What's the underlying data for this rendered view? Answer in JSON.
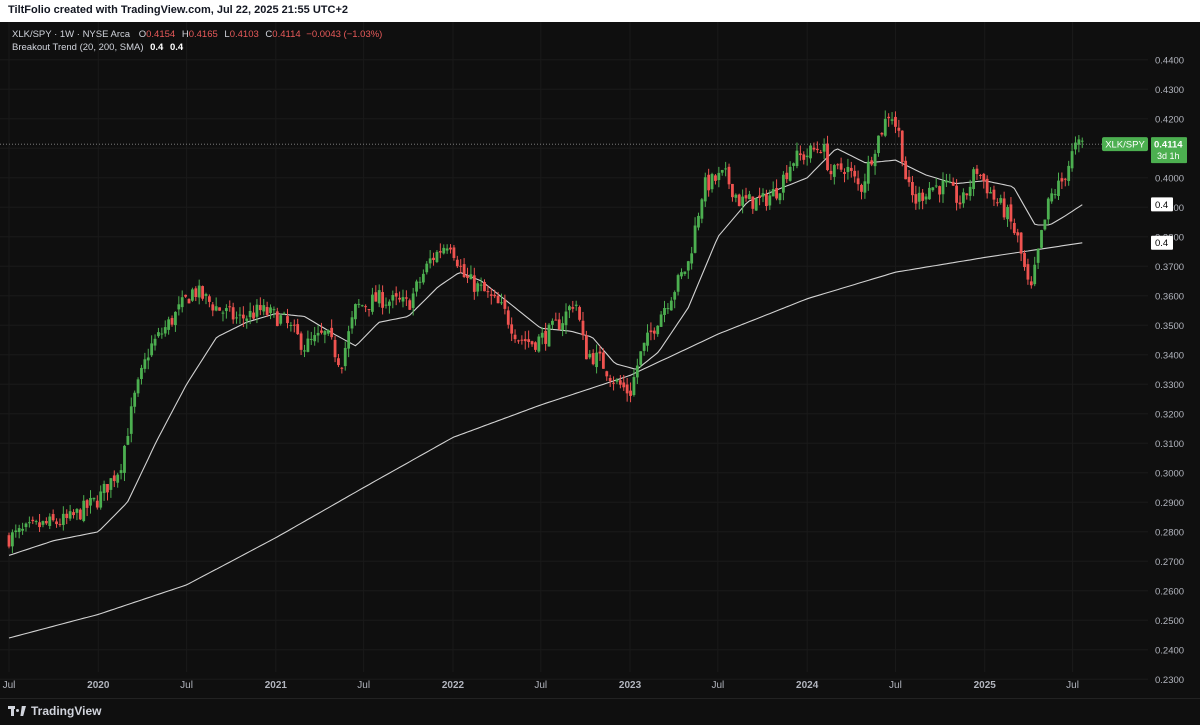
{
  "header": {
    "credit": "TiltFolio created with TradingView.com, Jul 22, 2025 21:55 UTC+2"
  },
  "legend": {
    "symbol": "XLK/SPY · 1W · NYSE Arca",
    "o_label": "O",
    "o_value": "0.4154",
    "h_label": "H",
    "h_value": "0.4165",
    "l_label": "L",
    "l_value": "0.4103",
    "c_label": "C",
    "c_value": "0.4114",
    "change": "−0.0043 (−1.03%)",
    "indicator_name": "Breakout Trend (20, 200, SMA)",
    "indicator_v1": "0.4",
    "indicator_v2": "0.4"
  },
  "price_tag": {
    "symbol": "XLK/SPY",
    "value": "0.4114",
    "countdown": "3d 1h"
  },
  "ma_tags": {
    "fast": "0.4",
    "slow": "0.4"
  },
  "footer": {
    "brand": "TradingView"
  },
  "colors": {
    "up": "#4caf50",
    "down": "#ef5350",
    "background": "#0f0f0f",
    "ma_fast": "#e8e8e8",
    "ma_slow": "#e8e8e8",
    "grid": "#1a1a1a",
    "text": "#b2b5be"
  },
  "chart_data": {
    "type": "candlestick",
    "title": "XLK/SPY · 1W · NYSE Arca",
    "interval": "1W",
    "y_ticks": [
      "0.4400",
      "0.4300",
      "0.4200",
      "0.4100",
      "0.4000",
      "0.3900",
      "0.3800",
      "0.3700",
      "0.3600",
      "0.3500",
      "0.3400",
      "0.3300",
      "0.3200",
      "0.3100",
      "0.3000",
      "0.2900",
      "0.2800",
      "0.2700",
      "0.2600",
      "0.2500",
      "0.2400",
      "0.2300"
    ],
    "ylim": [
      0.2265,
      0.444
    ],
    "x_ticks": [
      {
        "label": "Jul",
        "date": "2019-07-01"
      },
      {
        "label": "2020",
        "date": "2020-01-01"
      },
      {
        "label": "Jul",
        "date": "2020-07-01"
      },
      {
        "label": "2021",
        "date": "2021-01-01"
      },
      {
        "label": "Jul",
        "date": "2021-07-01"
      },
      {
        "label": "2022",
        "date": "2022-01-01"
      },
      {
        "label": "Jul",
        "date": "2022-07-01"
      },
      {
        "label": "2023",
        "date": "2023-01-01"
      },
      {
        "label": "Jul",
        "date": "2023-07-01"
      },
      {
        "label": "2024",
        "date": "2024-01-01"
      },
      {
        "label": "Jul",
        "date": "2024-07-01"
      },
      {
        "label": "2025",
        "date": "2025-01-01"
      },
      {
        "label": "Jul",
        "date": "2025-07-01"
      }
    ],
    "last_close": 0.4114,
    "close_anchors": [
      [
        "2019-07-01",
        0.278
      ],
      [
        "2019-09-01",
        0.282
      ],
      [
        "2019-11-01",
        0.284
      ],
      [
        "2020-01-01",
        0.291
      ],
      [
        "2020-02-15",
        0.302
      ],
      [
        "2020-03-15",
        0.325
      ],
      [
        "2020-04-15",
        0.342
      ],
      [
        "2020-06-01",
        0.352
      ],
      [
        "2020-07-15",
        0.362
      ],
      [
        "2020-09-01",
        0.356
      ],
      [
        "2020-10-15",
        0.352
      ],
      [
        "2020-12-01",
        0.355
      ],
      [
        "2021-01-15",
        0.352
      ],
      [
        "2021-03-01",
        0.343
      ],
      [
        "2021-04-15",
        0.347
      ],
      [
        "2021-05-15",
        0.337
      ],
      [
        "2021-06-15",
        0.356
      ],
      [
        "2021-08-01",
        0.359
      ],
      [
        "2021-10-01",
        0.357
      ],
      [
        "2021-11-15",
        0.372
      ],
      [
        "2021-12-25",
        0.379
      ],
      [
        "2022-01-25",
        0.366
      ],
      [
        "2022-03-01",
        0.362
      ],
      [
        "2022-04-15",
        0.355
      ],
      [
        "2022-05-15",
        0.346
      ],
      [
        "2022-06-15",
        0.344
      ],
      [
        "2022-07-15",
        0.347
      ],
      [
        "2022-08-15",
        0.352
      ],
      [
        "2022-09-10",
        0.359
      ],
      [
        "2022-09-30",
        0.341
      ],
      [
        "2022-11-01",
        0.338
      ],
      [
        "2022-12-01",
        0.331
      ],
      [
        "2023-01-01",
        0.327
      ],
      [
        "2023-01-20",
        0.339
      ],
      [
        "2023-03-01",
        0.353
      ],
      [
        "2023-04-01",
        0.362
      ],
      [
        "2023-05-01",
        0.371
      ],
      [
        "2023-06-01",
        0.397
      ],
      [
        "2023-07-15",
        0.401
      ],
      [
        "2023-08-15",
        0.392
      ],
      [
        "2023-10-01",
        0.392
      ],
      [
        "2023-11-01",
        0.396
      ],
      [
        "2023-12-01",
        0.406
      ],
      [
        "2024-01-01",
        0.408
      ],
      [
        "2024-02-01",
        0.411
      ],
      [
        "2024-02-20",
        0.401
      ],
      [
        "2024-03-20",
        0.404
      ],
      [
        "2024-04-20",
        0.396
      ],
      [
        "2024-05-20",
        0.411
      ],
      [
        "2024-06-20",
        0.423
      ],
      [
        "2024-07-10",
        0.414
      ],
      [
        "2024-07-25",
        0.397
      ],
      [
        "2024-08-10",
        0.392
      ],
      [
        "2024-09-10",
        0.397
      ],
      [
        "2024-10-15",
        0.397
      ],
      [
        "2024-11-15",
        0.391
      ],
      [
        "2024-12-15",
        0.403
      ],
      [
        "2025-01-20",
        0.393
      ],
      [
        "2025-02-15",
        0.388
      ],
      [
        "2025-03-10",
        0.379
      ],
      [
        "2025-04-05",
        0.36
      ],
      [
        "2025-04-25",
        0.378
      ],
      [
        "2025-05-15",
        0.393
      ],
      [
        "2025-06-10",
        0.399
      ],
      [
        "2025-07-05",
        0.41
      ],
      [
        "2025-07-22",
        0.4114
      ]
    ],
    "ma_fast_anchors": [
      [
        "2019-07-01",
        0.272
      ],
      [
        "2019-10-01",
        0.277
      ],
      [
        "2020-01-01",
        0.28
      ],
      [
        "2020-03-01",
        0.29
      ],
      [
        "2020-05-01",
        0.311
      ],
      [
        "2020-07-01",
        0.33
      ],
      [
        "2020-09-01",
        0.346
      ],
      [
        "2020-11-01",
        0.351
      ],
      [
        "2021-01-01",
        0.354
      ],
      [
        "2021-03-01",
        0.353
      ],
      [
        "2021-05-01",
        0.347
      ],
      [
        "2021-06-15",
        0.343
      ],
      [
        "2021-08-01",
        0.351
      ],
      [
        "2021-10-01",
        0.353
      ],
      [
        "2021-12-01",
        0.363
      ],
      [
        "2022-01-15",
        0.368
      ],
      [
        "2022-03-01",
        0.365
      ],
      [
        "2022-05-01",
        0.357
      ],
      [
        "2022-07-01",
        0.349
      ],
      [
        "2022-09-01",
        0.348
      ],
      [
        "2022-10-15",
        0.346
      ],
      [
        "2022-12-01",
        0.337
      ],
      [
        "2023-01-15",
        0.335
      ],
      [
        "2023-03-01",
        0.341
      ],
      [
        "2023-05-01",
        0.356
      ],
      [
        "2023-07-01",
        0.38
      ],
      [
        "2023-09-01",
        0.392
      ],
      [
        "2023-11-01",
        0.396
      ],
      [
        "2024-01-01",
        0.4
      ],
      [
        "2024-03-01",
        0.41
      ],
      [
        "2024-05-01",
        0.405
      ],
      [
        "2024-07-01",
        0.406
      ],
      [
        "2024-09-01",
        0.401
      ],
      [
        "2024-11-01",
        0.398
      ],
      [
        "2025-01-01",
        0.399
      ],
      [
        "2025-03-01",
        0.397
      ],
      [
        "2025-04-15",
        0.384
      ],
      [
        "2025-05-15",
        0.384
      ],
      [
        "2025-06-15",
        0.387
      ],
      [
        "2025-07-22",
        0.391
      ]
    ],
    "ma_slow_anchors": [
      [
        "2019-07-01",
        0.244
      ],
      [
        "2020-01-01",
        0.252
      ],
      [
        "2020-07-01",
        0.262
      ],
      [
        "2021-01-01",
        0.278
      ],
      [
        "2021-07-01",
        0.295
      ],
      [
        "2022-01-01",
        0.312
      ],
      [
        "2022-07-01",
        0.323
      ],
      [
        "2023-01-01",
        0.333
      ],
      [
        "2023-07-01",
        0.347
      ],
      [
        "2024-01-01",
        0.359
      ],
      [
        "2024-07-01",
        0.368
      ],
      [
        "2025-01-01",
        0.373
      ],
      [
        "2025-07-22",
        0.378
      ]
    ]
  }
}
